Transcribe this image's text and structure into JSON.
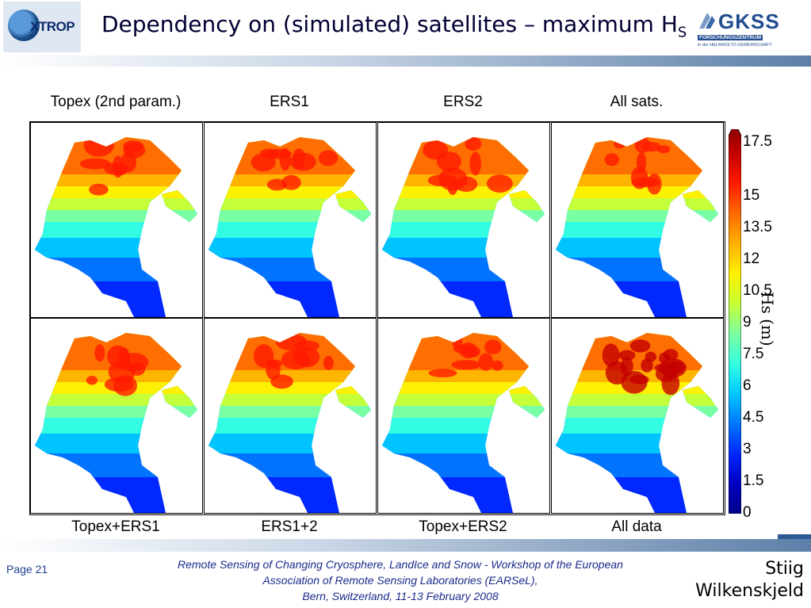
{
  "header": {
    "title_main": "Dependency on (simulated) satellites – maximum H",
    "title_sub": "S",
    "left_logo": "XTROP",
    "right_logo": {
      "name": "GKSS",
      "line1": "FORSCHUNGSZENTRUM",
      "line2": "in der HELMHOLTZ-GEMEINSCHAFT"
    }
  },
  "panels": {
    "top": [
      "Topex (2nd param.)",
      "ERS1",
      "ERS2",
      "All sats."
    ],
    "bottom": [
      "Topex+ERS1",
      "ERS1+2",
      "Topex+ERS2",
      "All data"
    ]
  },
  "colorbar": {
    "label": "Hs (m)",
    "ticks": [
      "17.5",
      "15",
      "13.5",
      "12",
      "10.5",
      "9",
      "7.5",
      "6",
      "4.5",
      "3",
      "1.5",
      "0"
    ],
    "colors": [
      "#7f0000",
      "#c40000",
      "#ff1a00",
      "#ff6a00",
      "#ffb000",
      "#ffef00",
      "#c8ff35",
      "#7dffa0",
      "#35ffe0",
      "#00c8ff",
      "#0078ff",
      "#0028ff",
      "#0000c0",
      "#00008c"
    ]
  },
  "footer": {
    "page": "Page 21",
    "line1": "Remote Sensing of Changing Cryosphere, LandIce and Snow - Workshop of the European",
    "line2": "Association of Remote Sensing Laboratories (EARSeL),",
    "line3": "Bern, Switzerland, 11-13 February 2008",
    "author_first": "Stiig",
    "author_last": "Wilkenskjeld"
  }
}
